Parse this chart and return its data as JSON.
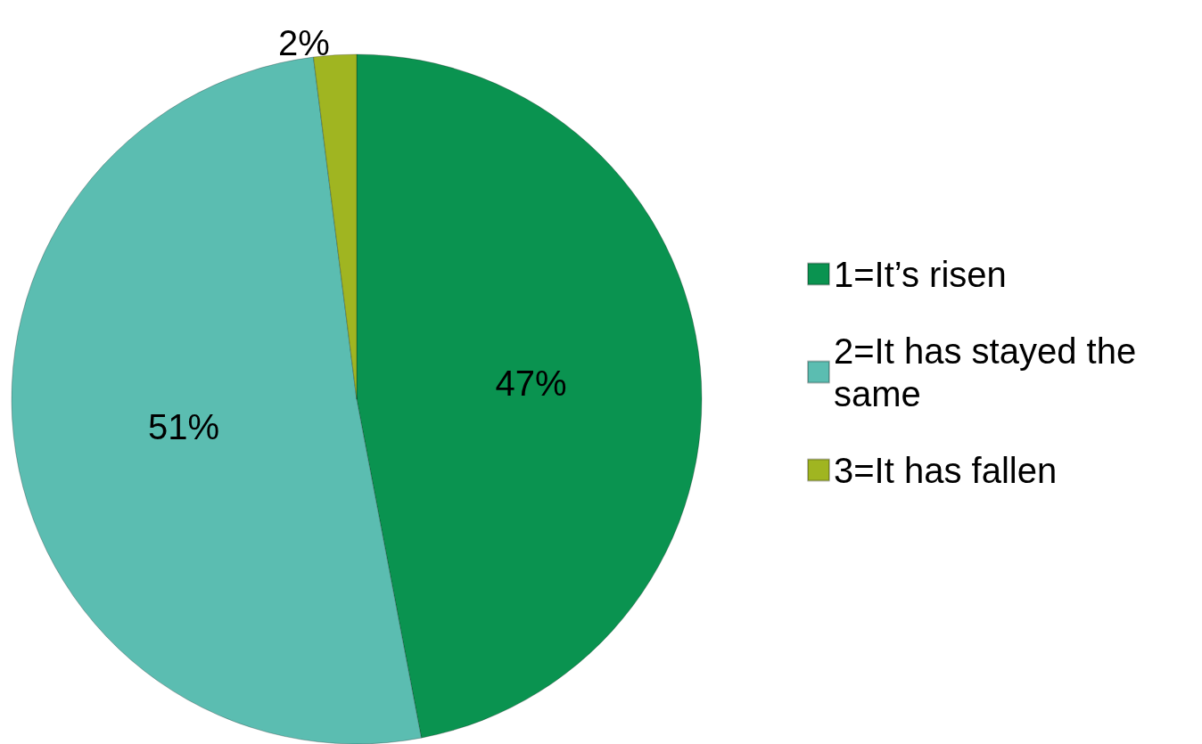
{
  "chart_data": {
    "type": "pie",
    "categories": [
      "1=It’s risen",
      "2=It has stayed the same",
      "3=It has fallen"
    ],
    "values": [
      47,
      51,
      2
    ],
    "colors": [
      "#0a9350",
      "#5bbdb1",
      "#a0b521"
    ],
    "value_labels": [
      "47%",
      "51%",
      "2%"
    ],
    "legend": "right"
  }
}
